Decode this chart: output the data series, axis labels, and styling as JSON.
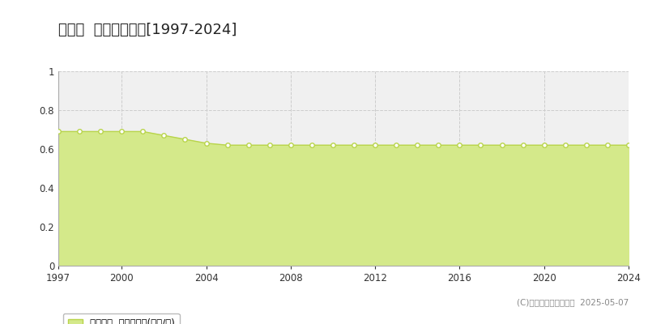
{
  "title": "三島村  基準地価推移[1997-2024]",
  "years": [
    1997,
    1998,
    1999,
    2000,
    2001,
    2002,
    2003,
    2004,
    2005,
    2006,
    2007,
    2008,
    2009,
    2010,
    2011,
    2012,
    2013,
    2014,
    2015,
    2016,
    2017,
    2018,
    2019,
    2020,
    2021,
    2022,
    2023,
    2024
  ],
  "values": [
    0.69,
    0.69,
    0.69,
    0.69,
    0.69,
    0.67,
    0.65,
    0.63,
    0.62,
    0.62,
    0.62,
    0.62,
    0.62,
    0.62,
    0.62,
    0.62,
    0.62,
    0.62,
    0.62,
    0.62,
    0.62,
    0.62,
    0.62,
    0.62,
    0.62,
    0.62,
    0.62,
    0.62
  ],
  "line_color": "#b8d44a",
  "fill_color": "#d4e98a",
  "marker_face": "#ffffff",
  "marker_edge": "#b8d44a",
  "bg_color": "#ffffff",
  "plot_bg_color": "#f0f0f0",
  "grid_color": "#cccccc",
  "ylim": [
    0,
    1.0
  ],
  "yticks": [
    0,
    0.2,
    0.4,
    0.6,
    0.8,
    1.0
  ],
  "xticks": [
    1997,
    2000,
    2004,
    2008,
    2012,
    2016,
    2020,
    2024
  ],
  "legend_label": "基準地価  平均坪単価(万円/坪)",
  "copyright": "(C)土地価格ドットコム  2025-05-07",
  "title_fontsize": 13,
  "tick_fontsize": 8.5,
  "legend_fontsize": 8.5,
  "copyright_fontsize": 7.5
}
